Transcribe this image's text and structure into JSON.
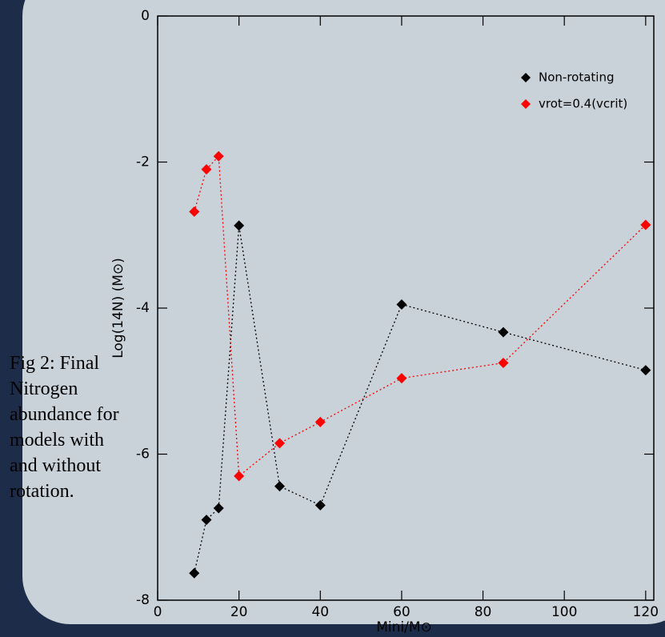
{
  "caption": "Fig 2: Final Nitrogen abundance for models with and without rotation.",
  "chart_data": {
    "type": "line",
    "xlabel": "Mini/M⊙",
    "ylabel": "Log(14N) (M⊙)",
    "x": [
      9,
      12,
      15,
      20,
      30,
      40,
      60,
      85,
      120
    ],
    "series": [
      {
        "name": "Non-rotating",
        "color": "#000000",
        "values": [
          -7.63,
          -6.9,
          -6.74,
          -2.87,
          -6.44,
          -6.7,
          -3.95,
          -4.33,
          -4.85
        ]
      },
      {
        "name": "vrot=0.4(vcrit)",
        "color": "#ff0000",
        "values": [
          -2.68,
          -2.1,
          -1.92,
          -6.3,
          -5.85,
          -5.56,
          -4.96,
          -4.75,
          -2.86
        ]
      }
    ],
    "xlim": [
      0,
      122
    ],
    "ylim": [
      -8,
      0
    ],
    "xticks": [
      0,
      20,
      40,
      60,
      80,
      100,
      120
    ],
    "yticks": [
      -8,
      -6,
      -4,
      -2,
      0
    ],
    "legend": "upper right",
    "line_style": "dotted"
  }
}
